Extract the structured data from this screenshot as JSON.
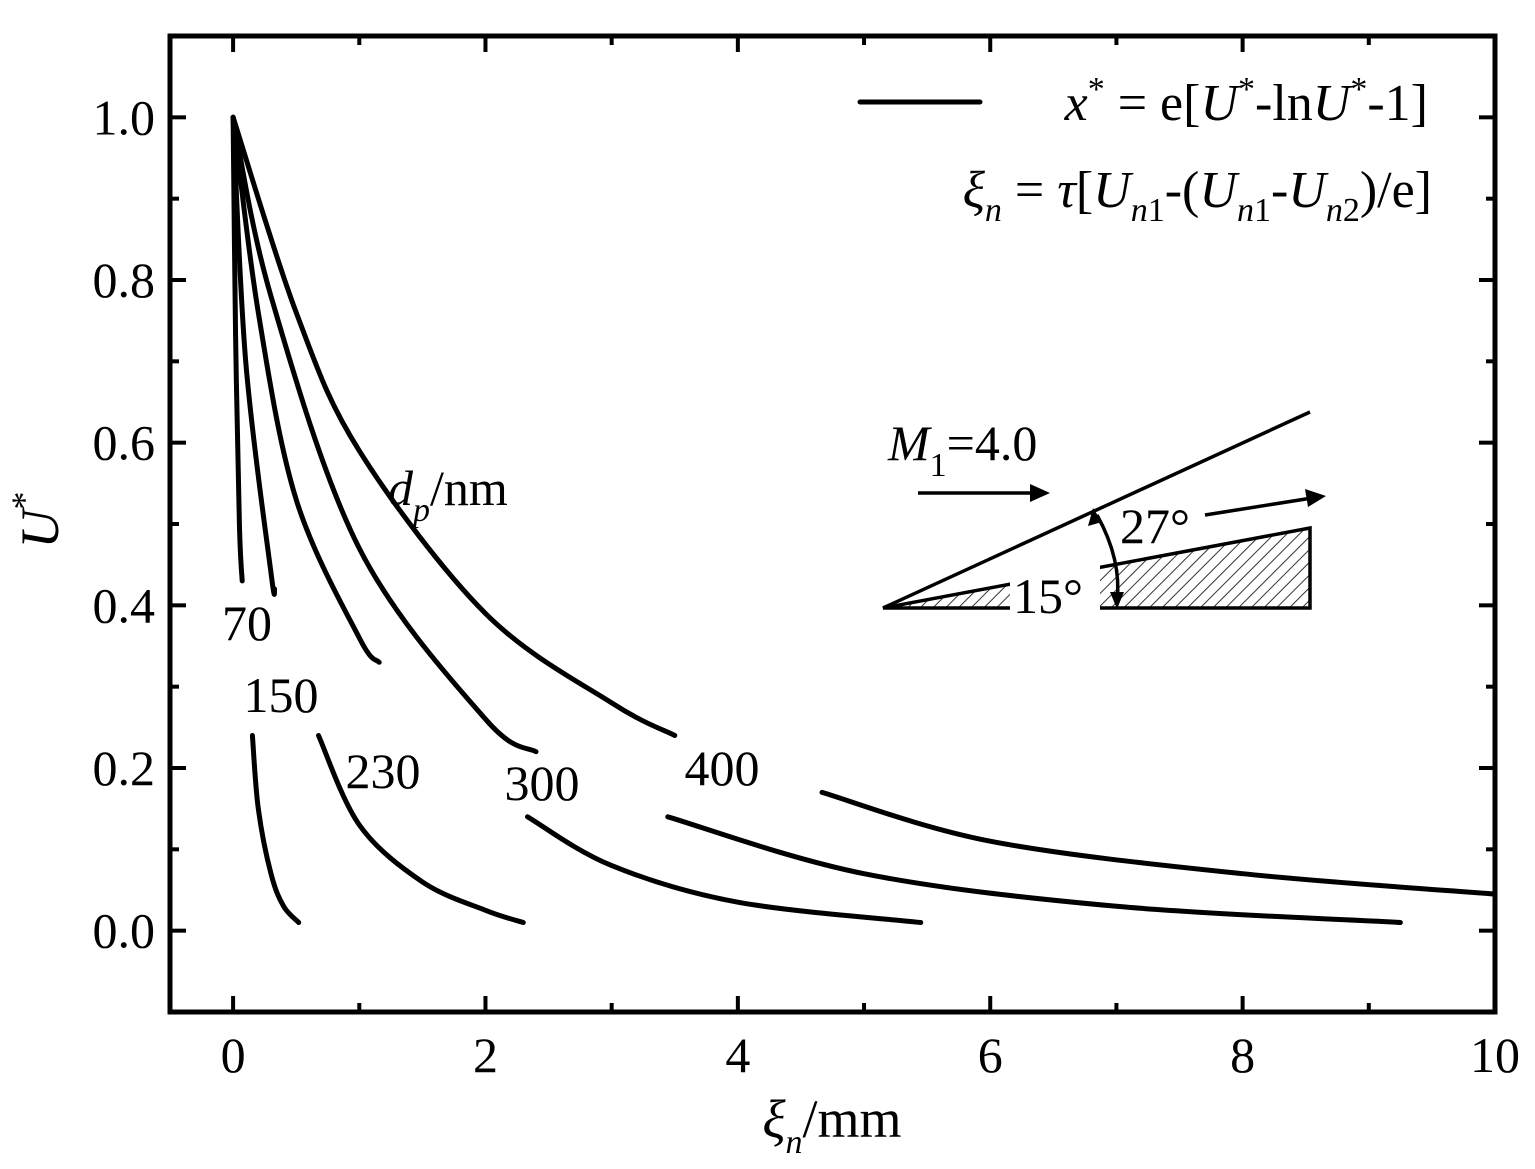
{
  "chart_data": {
    "type": "line",
    "xlabel": "ξn/mm",
    "xlabel_parts": {
      "sym": "ξ",
      "sub": "n",
      "unit": "/mm"
    },
    "ylabel": "U*",
    "ylabel_parts": {
      "sym": "U",
      "sup": "*"
    },
    "xlim": [
      -0.5,
      10
    ],
    "ylim": [
      -0.1,
      1.1
    ],
    "x_ticks": [
      0,
      2,
      4,
      6,
      8,
      10
    ],
    "x_tick_labels": [
      "0",
      "2",
      "4",
      "6",
      "8",
      "10"
    ],
    "y_ticks": [
      0.0,
      0.2,
      0.4,
      0.6,
      0.8,
      1.0
    ],
    "y_tick_labels": [
      "0.0",
      "0.2",
      "0.4",
      "0.6",
      "0.8",
      "1.0"
    ],
    "grid": false,
    "legend": {
      "position": "top-right",
      "line1": "x* = e[U*-lnU*-1]",
      "line2": "ξn = τ[Un1-(Un1-Un2)/e]"
    },
    "series_group_label": "dp/nm",
    "series_group_parts": {
      "sym": "d",
      "sub": "p",
      "unit": "/nm"
    },
    "series": [
      {
        "name": "70",
        "ximax": 0.52,
        "xsample": [
          0,
          0.02,
          0.05,
          0.1,
          0.2,
          0.3,
          0.4,
          0.52
        ],
        "ysample": [
          1.0,
          0.73,
          0.5,
          0.34,
          0.15,
          0.07,
          0.03,
          0.01
        ]
      },
      {
        "name": "150",
        "ximax": 2.3,
        "xsample": [
          0,
          0.1,
          0.3,
          0.5,
          1.0,
          1.5,
          2.0,
          2.3
        ],
        "ysample": [
          1.0,
          0.7,
          0.44,
          0.3,
          0.13,
          0.06,
          0.025,
          0.01
        ]
      },
      {
        "name": "230",
        "ximax": 5.45,
        "xsample": [
          0,
          0.2,
          0.5,
          1.0,
          2.0,
          3.0,
          4.0,
          5.45
        ],
        "ysample": [
          1.0,
          0.76,
          0.53,
          0.36,
          0.17,
          0.08,
          0.035,
          0.01
        ]
      },
      {
        "name": "300",
        "ximax": 9.25,
        "xsample": [
          0,
          0.3,
          1.0,
          2.0,
          3.0,
          5.0,
          7.0,
          9.25
        ],
        "ysample": [
          1.0,
          0.78,
          0.47,
          0.26,
          0.16,
          0.07,
          0.03,
          0.01
        ]
      },
      {
        "name": "400",
        "ximax": 10.0,
        "xsample": [
          0,
          0.5,
          1.0,
          2.0,
          3.0,
          4.0,
          6.0,
          8.0,
          10.0
        ],
        "ysample": [
          1.0,
          0.76,
          0.59,
          0.39,
          0.28,
          0.2,
          0.11,
          0.07,
          0.045
        ]
      }
    ],
    "inset": {
      "mach_label": {
        "sym": "M",
        "sub": "1",
        "value": "=4.0"
      },
      "angle_wedge": "15°",
      "angle_shock": "27°"
    }
  }
}
